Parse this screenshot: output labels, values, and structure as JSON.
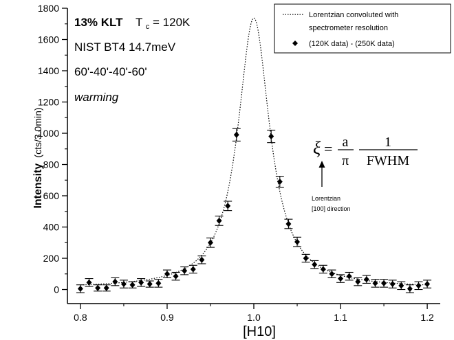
{
  "chart_data": {
    "type": "scatter",
    "xlabel": "[H10]",
    "ylabel_main": "Intensity",
    "ylabel_unit": "(cts/3.0min)",
    "xlim": [
      0.785,
      1.215
    ],
    "ylim": [
      -90,
      1800
    ],
    "x_ticks": [
      0.8,
      0.9,
      1.0,
      1.1,
      1.2
    ],
    "x_tick_labels": [
      "0.8",
      "0.9",
      "1.0",
      "1.1",
      "1.2"
    ],
    "y_ticks": [
      0,
      200,
      400,
      600,
      800,
      1000,
      1200,
      1400,
      1600,
      1800
    ],
    "y_tick_labels": [
      "0",
      "200",
      "400",
      "600",
      "800",
      "1000",
      "1200",
      "1400",
      "1600",
      "1800"
    ],
    "annotations": {
      "sample_bold": "13% KLT",
      "tc_prefix": "T",
      "tc_sub": "c",
      "tc_value": " = 120K",
      "line2": "NIST  BT4  14.7meV",
      "line3": "60'-40'-40'-60'",
      "line4": "warming"
    },
    "legend": {
      "placement": "top-right",
      "fit_line1": "Lorentzian convoluted with",
      "fit_line2": "spectrometer resolution",
      "data_label": "(120K data) - (250K data)"
    },
    "formula": {
      "lhs": "ξ",
      "eq": "=",
      "num1": "a",
      "den1": "π",
      "num2": "1",
      "den2": "FWHM",
      "note_line1": "Lorentzian",
      "note_line2": "[100] direction"
    },
    "series": [
      {
        "name": "(120K data) - (250K data)",
        "marker": "diamond",
        "x": [
          0.8,
          0.81,
          0.82,
          0.83,
          0.84,
          0.85,
          0.86,
          0.87,
          0.88,
          0.89,
          0.9,
          0.91,
          0.92,
          0.93,
          0.94,
          0.95,
          0.96,
          0.97,
          0.98,
          1.02,
          1.03,
          1.04,
          1.05,
          1.06,
          1.07,
          1.08,
          1.09,
          1.1,
          1.11,
          1.12,
          1.13,
          1.14,
          1.15,
          1.16,
          1.17,
          1.18,
          1.19,
          1.2
        ],
        "y": [
          5,
          45,
          10,
          10,
          50,
          35,
          30,
          45,
          35,
          40,
          100,
          85,
          120,
          130,
          190,
          300,
          440,
          535,
          990,
          980,
          690,
          420,
          305,
          200,
          160,
          130,
          100,
          70,
          85,
          50,
          65,
          40,
          40,
          35,
          25,
          5,
          25,
          35
        ],
        "err": [
          25,
          25,
          20,
          20,
          25,
          25,
          20,
          25,
          20,
          25,
          25,
          25,
          25,
          25,
          25,
          30,
          30,
          30,
          40,
          40,
          35,
          30,
          30,
          25,
          25,
          25,
          25,
          25,
          25,
          25,
          25,
          25,
          25,
          25,
          25,
          25,
          25,
          25
        ]
      },
      {
        "name": "Lorentzian convoluted with spectrometer resolution",
        "style": "dotted",
        "function": "lorentzian",
        "center": 1.0,
        "amplitude": 1730,
        "hwhm": 0.0224,
        "background": 8
      }
    ]
  }
}
